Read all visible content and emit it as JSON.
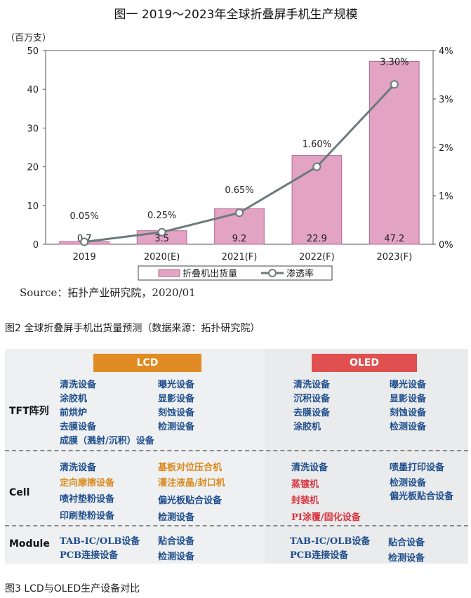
{
  "chart_data": {
    "type": "bar",
    "title": "图一  2019～2023年全球折叠屏手机生产规模",
    "ylabel": "（百万支）",
    "categories": [
      "2019",
      "2020(E)",
      "2021(F)",
      "2022(F)",
      "2023(F)"
    ],
    "ylim": [
      0,
      50
    ],
    "y_ticks": [
      "0",
      "10",
      "20",
      "30",
      "40",
      "50"
    ],
    "y2lim": [
      0,
      4
    ],
    "y2_ticks": [
      "0%",
      "1%",
      "2%",
      "3%",
      "4%"
    ],
    "series": [
      {
        "name": "折叠机出货量",
        "type": "bar",
        "axis": "left",
        "values": [
          0.7,
          3.5,
          9.2,
          22.9,
          47.2
        ],
        "labels": [
          "0.7",
          "3.5",
          "9.2",
          "22.9",
          "47.2"
        ]
      },
      {
        "name": "渗透率",
        "type": "line",
        "axis": "right",
        "values": [
          0.05,
          0.25,
          0.65,
          1.6,
          3.3
        ],
        "labels": [
          "0.05%",
          "0.25%",
          "0.65%",
          "1.60%",
          "3.30%"
        ]
      }
    ],
    "legend_position": "bottom",
    "source": "Source：拓扑产业研究院，2020/01",
    "colors": {
      "bar": "#e2a3c4",
      "bar_border": "#b36b90",
      "line": "#6b7b7b"
    }
  },
  "caption2": "图2 全球折叠屏手机出货量预测（数据来源：拓扑研究院）",
  "table": {
    "lcd_label": "LCD",
    "oled_label": "OLED",
    "sections": {
      "tft": "TFT阵列",
      "cell": "Cell",
      "module": "Module"
    },
    "lcd": {
      "tft": [
        "清洗设备",
        "曝光设备",
        "涂胶机",
        "显影设备",
        "前烘炉",
        "刻蚀设备",
        "去膜设备",
        "检测设备",
        "成膜（溅射/沉积）设备"
      ],
      "cell": [
        "清洗设备",
        "基板对位压合机",
        "定向摩擦设备",
        "灌注液晶/封口机",
        "喷衬垫粉设备",
        "偏光板贴合设备",
        "印刷垫粉设备",
        "检测设备"
      ],
      "module": [
        "TAB-IC/OLB设备",
        "贴合设备",
        "PCB连接设备",
        "检测设备"
      ]
    },
    "oled": {
      "tft": [
        "清洗设备",
        "曝光设备",
        "沉积设备",
        "显影设备",
        "去膜设备",
        "刻蚀设备",
        "涂胶机",
        "检测设备"
      ],
      "cell": [
        "清洗设备",
        "喷墨打印设备",
        "蒸镀机",
        "检测设备",
        "封装机",
        "偏光板贴合设备",
        "PI涂覆/固化设备"
      ],
      "module": [
        "TAB-IC/OLB设备",
        "贴合设备",
        "PCB连接设备",
        "检测设备"
      ]
    },
    "colors": {
      "lcd_header": "#e08b23",
      "oled_header": "#e05050",
      "item": "#1f4e8c",
      "orange": "#d98a1b",
      "red": "#d9363e"
    }
  },
  "caption3": "图3 LCD与OLED生产设备对比"
}
